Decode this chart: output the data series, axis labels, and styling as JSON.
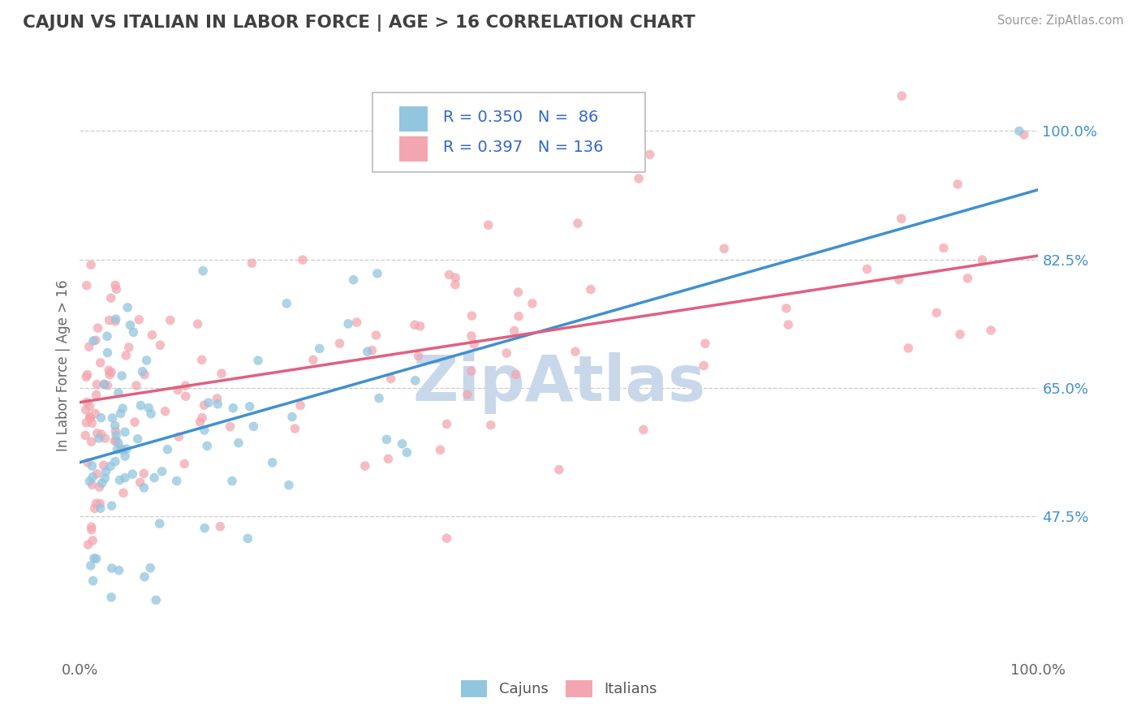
{
  "title": "CAJUN VS ITALIAN IN LABOR FORCE | AGE > 16 CORRELATION CHART",
  "source_text": "Source: ZipAtlas.com",
  "ylabel": "In Labor Force | Age > 16",
  "cajun_R": 0.35,
  "cajun_N": 86,
  "italian_R": 0.397,
  "italian_N": 136,
  "cajun_color": "#92C5DE",
  "italian_color": "#F4A6B0",
  "cajun_line_color": "#4090D0",
  "italian_line_color": "#E06080",
  "background_color": "#FFFFFF",
  "watermark_color": "#C8D8EA",
  "xmin": 0.0,
  "xmax": 1.0,
  "ymin": 0.28,
  "ymax": 1.08,
  "yticks": [
    0.475,
    0.65,
    0.825,
    1.0
  ],
  "ytick_labels": [
    "47.5%",
    "65.0%",
    "82.5%",
    "100.0%"
  ],
  "grid_color": "#CCCCCC",
  "title_color": "#404040",
  "cajun_line_x0": 0.0,
  "cajun_line_y0": 0.548,
  "cajun_line_x1": 1.0,
  "cajun_line_y1": 0.92,
  "italian_line_x0": 0.0,
  "italian_line_y0": 0.63,
  "italian_line_x1": 1.0,
  "italian_line_y1": 0.83
}
